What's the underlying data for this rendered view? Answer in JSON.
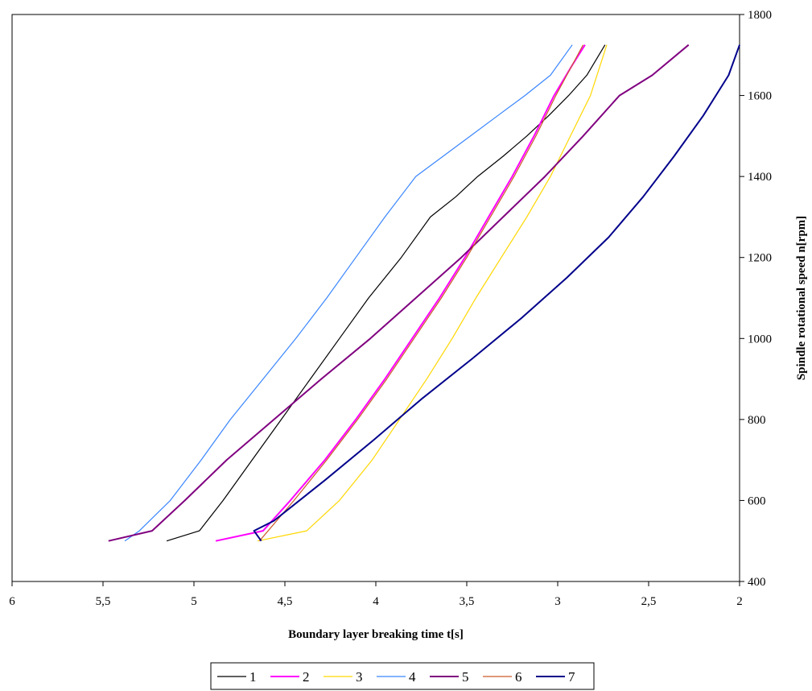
{
  "chart_data": {
    "type": "line",
    "title": "",
    "xlabel": "Boundary layer breaking time t[s]",
    "ylabel": "Spindle rotational speed n[rpm]",
    "x_reversed": true,
    "xlim": [
      6,
      2
    ],
    "ylim": [
      400,
      1800
    ],
    "x_ticks": [
      6,
      5.5,
      5,
      4.5,
      4,
      3.5,
      3,
      2.5,
      2
    ],
    "x_tick_labels": [
      "6",
      "5,5",
      "5",
      "4,5",
      "4",
      "3,5",
      "3",
      "2,5",
      "2"
    ],
    "y_ticks": [
      400,
      600,
      800,
      1000,
      1200,
      1400,
      1600,
      1800
    ],
    "y_tick_labels": [
      "400",
      "600",
      "800",
      "1000",
      "1200",
      "1400",
      "1600",
      "1800"
    ],
    "y_axis_side": "right",
    "grid": false,
    "legend_position": "bottom",
    "series": [
      {
        "name": "1",
        "color": "#000000",
        "x": [
          5.15,
          4.97,
          4.84,
          4.68,
          4.52,
          4.36,
          4.2,
          4.04,
          3.86,
          3.7,
          3.56,
          3.44,
          3.3,
          3.17,
          3.05,
          2.94,
          2.84,
          2.74
        ],
        "y": [
          500,
          525,
          600,
          700,
          800,
          900,
          1000,
          1100,
          1200,
          1300,
          1350,
          1400,
          1450,
          1500,
          1550,
          1600,
          1650,
          1725
        ]
      },
      {
        "name": "2",
        "color": "#ff00ff",
        "x": [
          4.88,
          4.62,
          4.47,
          4.28,
          4.11,
          3.95,
          3.8,
          3.65,
          3.51,
          3.38,
          3.25,
          3.13,
          3.02,
          2.92,
          2.85
        ],
        "y": [
          500,
          525,
          600,
          700,
          800,
          900,
          1000,
          1100,
          1200,
          1300,
          1400,
          1500,
          1600,
          1675,
          1725
        ]
      },
      {
        "name": "3",
        "color": "#ffd700",
        "x": [
          4.65,
          4.38,
          4.2,
          4.02,
          3.87,
          3.72,
          3.58,
          3.45,
          3.31,
          3.17,
          3.04,
          2.93,
          2.82,
          2.73
        ],
        "y": [
          500,
          525,
          600,
          700,
          800,
          900,
          1000,
          1100,
          1200,
          1300,
          1400,
          1500,
          1600,
          1725
        ]
      },
      {
        "name": "4",
        "color": "#3a86ff",
        "x": [
          5.38,
          5.3,
          5.13,
          4.96,
          4.8,
          4.62,
          4.44,
          4.27,
          4.11,
          3.95,
          3.78,
          3.63,
          3.48,
          3.33,
          3.18,
          3.04,
          2.92
        ],
        "y": [
          500,
          525,
          600,
          700,
          800,
          900,
          1000,
          1100,
          1200,
          1300,
          1400,
          1450,
          1500,
          1550,
          1600,
          1650,
          1725
        ]
      },
      {
        "name": "5",
        "color": "#800080",
        "x": [
          5.47,
          5.23,
          5.05,
          4.82,
          4.56,
          4.3,
          4.03,
          3.78,
          3.53,
          3.3,
          3.07,
          2.86,
          2.66,
          2.48,
          2.28
        ],
        "y": [
          500,
          525,
          600,
          700,
          800,
          900,
          1000,
          1100,
          1200,
          1300,
          1400,
          1500,
          1600,
          1650,
          1725
        ]
      },
      {
        "name": "6",
        "color": "#cc5a2a",
        "x": [
          4.64,
          4.45,
          4.27,
          4.1,
          3.94,
          3.79,
          3.64,
          3.5,
          3.37,
          3.24,
          3.12,
          3.01,
          2.86
        ],
        "y": [
          500,
          600,
          700,
          800,
          900,
          1000,
          1100,
          1200,
          1300,
          1400,
          1500,
          1600,
          1725
        ]
      },
      {
        "name": "7",
        "color": "#00008b",
        "x": [
          4.63,
          4.67,
          4.56,
          4.28,
          4.01,
          3.75,
          3.47,
          3.2,
          2.95,
          2.72,
          2.53,
          2.36,
          2.2,
          2.06,
          2.0
        ],
        "y": [
          500,
          525,
          550,
          650,
          750,
          850,
          950,
          1050,
          1150,
          1250,
          1350,
          1450,
          1550,
          1650,
          1725
        ]
      }
    ]
  }
}
